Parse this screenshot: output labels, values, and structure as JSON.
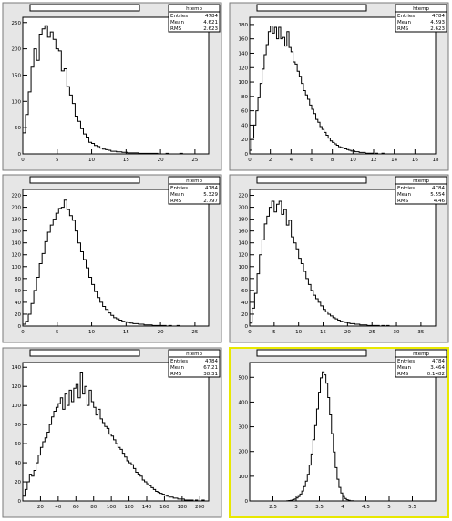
{
  "chart_data": [
    {
      "type": "bar",
      "title": "",
      "stats": {
        "name": "htemp",
        "entries": "4784",
        "mean": "4.621",
        "rms": "2.623"
      },
      "xlim": [
        0,
        27
      ],
      "ylim": [
        0,
        260
      ],
      "xticks": [
        0,
        5,
        10,
        15,
        20,
        25
      ],
      "xtick_labels": [
        "0",
        "5",
        "10",
        "15",
        "20",
        "25"
      ],
      "yticks": [
        0,
        50,
        100,
        150,
        200,
        250
      ],
      "ytick_labels": [
        "0",
        "50",
        "100",
        "150",
        "200",
        "250"
      ],
      "binwidth": 0.4,
      "values": [
        40,
        75,
        118,
        165,
        200,
        178,
        228,
        238,
        244,
        222,
        232,
        218,
        200,
        196,
        158,
        162,
        128,
        112,
        96,
        72,
        62,
        48,
        38,
        32,
        22,
        20,
        16,
        14,
        11,
        9,
        8,
        7,
        5,
        5,
        4,
        4,
        3,
        3,
        2,
        2,
        2,
        2,
        1,
        1,
        1,
        1,
        1,
        1,
        1,
        0,
        0,
        0,
        1,
        0,
        0,
        0,
        0,
        1,
        0,
        0
      ]
    },
    {
      "type": "bar",
      "title": "",
      "stats": {
        "name": "htemp",
        "entries": "4784",
        "mean": "4.593",
        "rms": "2.623"
      },
      "xlim": [
        0,
        18
      ],
      "ylim": [
        0,
        190
      ],
      "xticks": [
        0,
        2,
        4,
        6,
        8,
        10,
        12,
        14,
        16,
        18
      ],
      "xtick_labels": [
        "0",
        "2",
        "4",
        "6",
        "8",
        "10",
        "12",
        "14",
        "16",
        "18"
      ],
      "yticks": [
        0,
        20,
        40,
        60,
        80,
        100,
        120,
        140,
        160,
        180
      ],
      "ytick_labels": [
        "0",
        "20",
        "40",
        "60",
        "80",
        "100",
        "120",
        "140",
        "160",
        "180"
      ],
      "binwidth": 0.2,
      "values": [
        5,
        22,
        40,
        60,
        78,
        98,
        118,
        138,
        152,
        170,
        178,
        168,
        176,
        160,
        176,
        160,
        162,
        150,
        170,
        148,
        142,
        128,
        125,
        115,
        108,
        98,
        88,
        82,
        76,
        68,
        62,
        56,
        48,
        44,
        38,
        34,
        30,
        26,
        22,
        18,
        16,
        14,
        12,
        10,
        9,
        8,
        7,
        6,
        5,
        4,
        4,
        3,
        3,
        2,
        2,
        2,
        1,
        1,
        1,
        1,
        0,
        1,
        0,
        0,
        1
      ]
    },
    {
      "type": "bar",
      "title": "",
      "stats": {
        "name": "htemp",
        "entries": "4784",
        "mean": "5.329",
        "rms": "2.797"
      },
      "xlim": [
        0,
        27
      ],
      "ylim": [
        0,
        230
      ],
      "xticks": [
        0,
        5,
        10,
        15,
        20,
        25
      ],
      "xtick_labels": [
        "0",
        "5",
        "10",
        "15",
        "20",
        "25"
      ],
      "yticks": [
        0,
        20,
        40,
        60,
        80,
        100,
        120,
        140,
        160,
        180,
        200,
        220
      ],
      "ytick_labels": [
        "0",
        "20",
        "40",
        "60",
        "80",
        "100",
        "120",
        "140",
        "160",
        "180",
        "200",
        "220"
      ],
      "binwidth": 0.4,
      "values": [
        3,
        8,
        20,
        38,
        60,
        82,
        105,
        122,
        142,
        158,
        170,
        180,
        190,
        198,
        200,
        212,
        196,
        186,
        178,
        160,
        140,
        125,
        112,
        98,
        82,
        70,
        58,
        48,
        40,
        33,
        28,
        22,
        18,
        14,
        12,
        10,
        8,
        7,
        6,
        5,
        4,
        4,
        3,
        3,
        2,
        2,
        2,
        1,
        1,
        1,
        1,
        1,
        0,
        1,
        0,
        0,
        1
      ]
    },
    {
      "type": "bar",
      "title": "",
      "stats": {
        "name": "htemp",
        "entries": "4784",
        "mean": "5.554",
        "rms": "4.46"
      },
      "xlim": [
        0,
        38
      ],
      "ylim": [
        0,
        230
      ],
      "xticks": [
        0,
        5,
        10,
        15,
        20,
        25,
        30,
        35
      ],
      "xtick_labels": [
        "0",
        "5",
        "10",
        "15",
        "20",
        "25",
        "30",
        "35"
      ],
      "yticks": [
        0,
        20,
        40,
        60,
        80,
        100,
        120,
        140,
        160,
        180,
        200,
        220
      ],
      "ytick_labels": [
        "0",
        "20",
        "40",
        "60",
        "80",
        "100",
        "120",
        "140",
        "160",
        "180",
        "200",
        "220"
      ],
      "binwidth": 0.5,
      "values": [
        5,
        30,
        55,
        88,
        120,
        145,
        172,
        185,
        200,
        210,
        192,
        205,
        210,
        188,
        196,
        170,
        178,
        150,
        140,
        130,
        114,
        105,
        92,
        80,
        70,
        60,
        52,
        46,
        40,
        34,
        28,
        24,
        20,
        17,
        14,
        12,
        10,
        8,
        7,
        6,
        5,
        4,
        4,
        3,
        3,
        2,
        2,
        2,
        1,
        1,
        1,
        1,
        1,
        0,
        1,
        0,
        1
      ]
    },
    {
      "type": "bar",
      "title": "",
      "stats": {
        "name": "htemp",
        "entries": "4784",
        "mean": "67.21",
        "rms": "38.31"
      },
      "xlim": [
        0,
        210
      ],
      "ylim": [
        0,
        145
      ],
      "xticks": [
        20,
        40,
        60,
        80,
        100,
        120,
        140,
        160,
        180,
        200
      ],
      "xtick_labels": [
        "20",
        "40",
        "60",
        "80",
        "100",
        "120",
        "140",
        "160",
        "180",
        "200"
      ],
      "yticks": [
        0,
        20,
        40,
        60,
        80,
        100,
        120,
        140
      ],
      "ytick_labels": [
        "0",
        "20",
        "40",
        "60",
        "80",
        "100",
        "120",
        "140"
      ],
      "binwidth": 2.5,
      "values": [
        5,
        12,
        20,
        28,
        26,
        32,
        40,
        48,
        56,
        62,
        66,
        72,
        80,
        88,
        94,
        98,
        102,
        108,
        96,
        112,
        100,
        116,
        104,
        118,
        122,
        108,
        135,
        112,
        120,
        100,
        116,
        104,
        98,
        90,
        96,
        86,
        82,
        78,
        76,
        70,
        68,
        64,
        60,
        56,
        54,
        50,
        46,
        42,
        40,
        38,
        34,
        30,
        28,
        26,
        22,
        20,
        18,
        16,
        14,
        12,
        10,
        9,
        8,
        7,
        6,
        5,
        4,
        4,
        3,
        3,
        2,
        2,
        2,
        1,
        1,
        1,
        1,
        0,
        1,
        0,
        0,
        1
      ]
    },
    {
      "type": "bar",
      "title": "",
      "stats": {
        "name": "htemp",
        "entries": "4784",
        "mean": "3.464",
        "rms": "0.1482"
      },
      "xlim": [
        2,
        6
      ],
      "ylim": [
        0,
        560
      ],
      "xticks": [
        2.5,
        3,
        3.5,
        4,
        4.5,
        5,
        5.5
      ],
      "xtick_labels": [
        "2.5",
        "3",
        "3.5",
        "4",
        "4.5",
        "5",
        "5.5"
      ],
      "yticks": [
        0,
        100,
        200,
        300,
        400,
        500
      ],
      "ytick_labels": [
        "0",
        "100",
        "200",
        "300",
        "400",
        "500"
      ],
      "binwidth": 0.04,
      "values": [
        0,
        0,
        0,
        0,
        0,
        0,
        0,
        0,
        0,
        0,
        0,
        0,
        0,
        0,
        0,
        0,
        0,
        0,
        0,
        0,
        1,
        2,
        3,
        5,
        8,
        12,
        18,
        28,
        40,
        58,
        80,
        108,
        145,
        190,
        248,
        305,
        372,
        440,
        498,
        522,
        510,
        476,
        418,
        348,
        272,
        198,
        135,
        88,
        55,
        32,
        18,
        10,
        5,
        3,
        1,
        1,
        0,
        0,
        0,
        0,
        0
      ]
    }
  ]
}
